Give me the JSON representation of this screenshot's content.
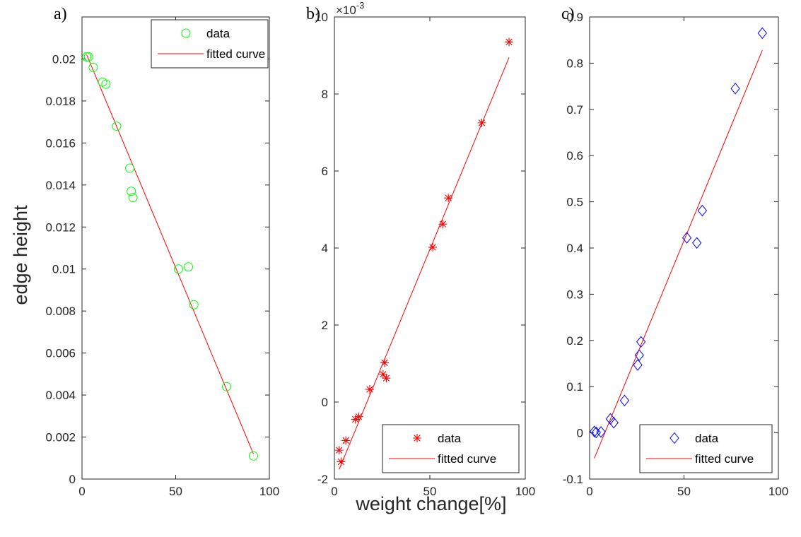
{
  "xlabel": "weight change[%]",
  "ylabel": "edge height",
  "legend_data": "data",
  "legend_fit": "fitted curve",
  "colors": {
    "fit": "#ff0000"
  },
  "chart_data": [
    {
      "panel": "a)",
      "type": "scatter",
      "marker": "circle",
      "marker_color": "#00ff00",
      "legend_position": "top-right",
      "xlim": [
        0,
        100
      ],
      "ylim": [
        0,
        0.022
      ],
      "xticks": [
        "0",
        "50",
        "100"
      ],
      "yticks": [
        "0",
        "0.002",
        "0.004",
        "0.006",
        "0.008",
        "0.01",
        "0.012",
        "0.014",
        "0.016",
        "0.018",
        "0.02"
      ],
      "series": [
        {
          "name": "data",
          "x": [
            2.5,
            3.5,
            6,
            11,
            12.8,
            18.5,
            25.5,
            26.3,
            27.2,
            51.5,
            56.8,
            59.7,
            77.2,
            91.5
          ],
          "y": [
            0.0201,
            0.0201,
            0.0196,
            0.0189,
            0.0188,
            0.0168,
            0.0148,
            0.0137,
            0.0134,
            0.01,
            0.0101,
            0.0083,
            0.0044,
            0.0011
          ]
        },
        {
          "name": "fitted curve",
          "x": [
            2.5,
            91.5
          ],
          "y": [
            0.0202,
            0.0012
          ]
        }
      ]
    },
    {
      "panel": "b)",
      "type": "scatter",
      "marker": "asterisk",
      "marker_color": "#ff0000",
      "legend_position": "bottom-right",
      "exponent_label": "×10",
      "exponent_value": "-3",
      "xlim": [
        0,
        100
      ],
      "ylim": [
        -2,
        10
      ],
      "xticks": [
        "0",
        "50",
        "100"
      ],
      "yticks": [
        "-2",
        "0",
        "2",
        "4",
        "6",
        "8",
        "10"
      ],
      "series": [
        {
          "name": "data",
          "x": [
            2.5,
            3.5,
            6,
            11,
            12.8,
            18.5,
            25.5,
            26.3,
            27.2,
            51.5,
            56.8,
            59.7,
            77.2,
            91.5
          ],
          "y": [
            -1.25,
            -1.55,
            -1.0,
            -0.45,
            -0.38,
            0.33,
            0.72,
            1.02,
            0.62,
            4.02,
            4.62,
            5.3,
            7.25,
            9.35
          ]
        },
        {
          "name": "fitted curve",
          "x": [
            2.5,
            91.5
          ],
          "y": [
            -1.75,
            8.95
          ]
        }
      ]
    },
    {
      "panel": "c)",
      "type": "scatter",
      "marker": "diamond",
      "marker_color": "#0000ff",
      "legend_position": "bottom-right",
      "xlim": [
        0,
        100
      ],
      "ylim": [
        -0.1,
        0.9
      ],
      "xticks": [
        "0",
        "50",
        "100"
      ],
      "yticks": [
        "-0.1",
        "0",
        "0.1",
        "0.2",
        "0.3",
        "0.4",
        "0.5",
        "0.6",
        "0.7",
        "0.8",
        "0.9"
      ],
      "series": [
        {
          "name": "data",
          "x": [
            2.5,
            3.5,
            6,
            11,
            12.8,
            18.5,
            25.5,
            26.3,
            27.2,
            51.5,
            56.8,
            59.7,
            77.2,
            91.5
          ],
          "y": [
            0.003,
            0.001,
            0.002,
            0.03,
            0.022,
            0.07,
            0.147,
            0.168,
            0.197,
            0.422,
            0.411,
            0.481,
            0.745,
            0.865
          ]
        },
        {
          "name": "fitted curve",
          "x": [
            2.5,
            91.5
          ],
          "y": [
            -0.055,
            0.828
          ]
        }
      ]
    }
  ]
}
